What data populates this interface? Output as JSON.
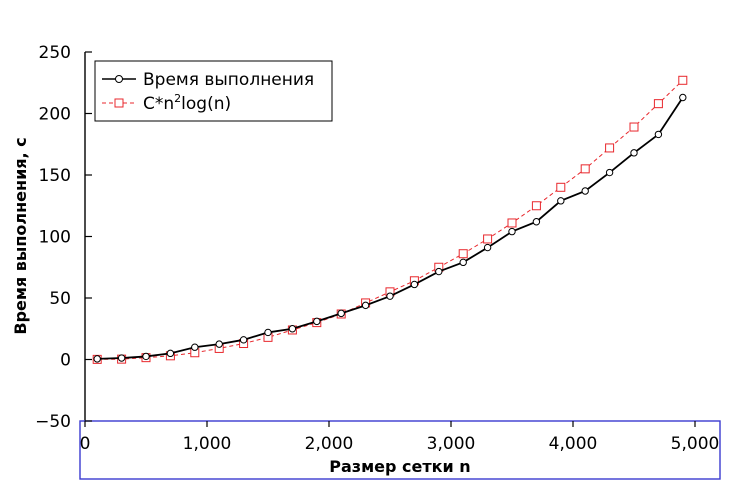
{
  "chart_data": {
    "type": "line",
    "title": "",
    "xlabel": "Размер сетки n",
    "ylabel": "Время выполнения, с",
    "xlim": [
      0,
      5000
    ],
    "ylim": [
      -50,
      250
    ],
    "x_ticks": [
      0,
      1000,
      2000,
      3000,
      4000,
      5000
    ],
    "x_tick_labels": [
      "0",
      "1,000",
      "2,000",
      "3,000",
      "4,000",
      "5,000"
    ],
    "y_ticks": [
      -50,
      0,
      50,
      100,
      150,
      200,
      250
    ],
    "y_tick_labels": [
      "−50",
      "0",
      "50",
      "100",
      "150",
      "200",
      "250"
    ],
    "grid": false,
    "legend_position": "top-left",
    "x": [
      100,
      300,
      500,
      700,
      900,
      1100,
      1300,
      1500,
      1700,
      1900,
      2100,
      2300,
      2500,
      2700,
      2900,
      3100,
      3300,
      3500,
      3700,
      3900,
      4100,
      4300,
      4500,
      4700,
      4900
    ],
    "series": [
      {
        "name": "Время выполнения",
        "color": "#000000",
        "marker": "circle",
        "line": "solid",
        "values": [
          0.5,
          1.2,
          2.5,
          5,
          10,
          12.5,
          16,
          22,
          25,
          31,
          37.5,
          44,
          51.5,
          61,
          71.5,
          79,
          91,
          104,
          112,
          129,
          137,
          152,
          168,
          183,
          213
        ]
      },
      {
        "name": "C*n²log(n)",
        "name_parts": {
          "prefix": "C*n",
          "sup": "2",
          "suffix": "log(n)"
        },
        "color": "#e8272c",
        "marker": "square",
        "line": "dashed",
        "values": [
          0.1,
          0.3,
          1.5,
          3,
          5.5,
          9,
          13,
          18,
          24,
          30,
          37,
          46,
          55,
          64,
          75,
          86,
          98,
          111,
          125,
          140,
          155,
          172,
          189,
          208,
          227
        ]
      }
    ]
  }
}
